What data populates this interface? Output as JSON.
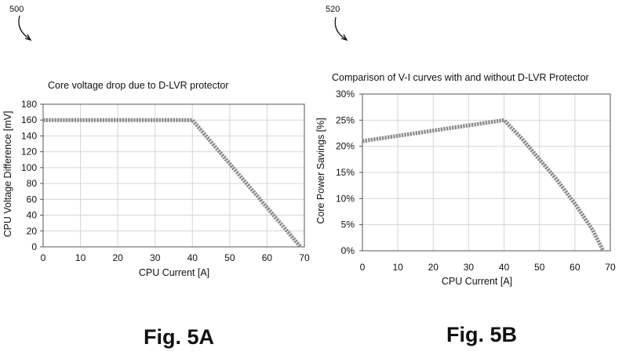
{
  "figures": [
    {
      "ref": "500",
      "label": "Fig. 5A"
    },
    {
      "ref": "520",
      "label": "Fig. 5B"
    }
  ],
  "chart_data": [
    {
      "type": "line",
      "title": "Core voltage drop due to D-LVR protector",
      "xlabel": "CPU Current [A]",
      "ylabel": "CPU Voltage Difference [mV]",
      "xlim": [
        0,
        70
      ],
      "ylim": [
        0,
        180
      ],
      "xticks": [
        0,
        10,
        20,
        30,
        40,
        50,
        60,
        70
      ],
      "yticks": [
        0,
        20,
        40,
        60,
        80,
        100,
        120,
        140,
        160,
        180
      ],
      "ytick_labels": [
        "0",
        "20",
        "40",
        "60",
        "80",
        "100",
        "120",
        "140",
        "160",
        "180"
      ],
      "grid": true,
      "x": [
        0,
        40,
        69
      ],
      "y": [
        160,
        160,
        0
      ]
    },
    {
      "type": "line",
      "title": "Comparison of V-I curves with and without D-LVR Protector",
      "xlabel": "CPU Current [A]",
      "ylabel": "Core Power Savings [%]",
      "xlim": [
        0,
        70
      ],
      "ylim": [
        0,
        30
      ],
      "xticks": [
        0,
        10,
        20,
        30,
        40,
        50,
        60,
        70
      ],
      "yticks": [
        0,
        5,
        10,
        15,
        20,
        25,
        30
      ],
      "ytick_labels": [
        "0%",
        "5%",
        "10%",
        "15%",
        "20%",
        "25%",
        "30%"
      ],
      "grid": true,
      "x": [
        0,
        40,
        45,
        50,
        55,
        60,
        65,
        68
      ],
      "y": [
        21,
        25,
        21.5,
        17.5,
        13.5,
        9,
        4,
        0
      ]
    }
  ]
}
